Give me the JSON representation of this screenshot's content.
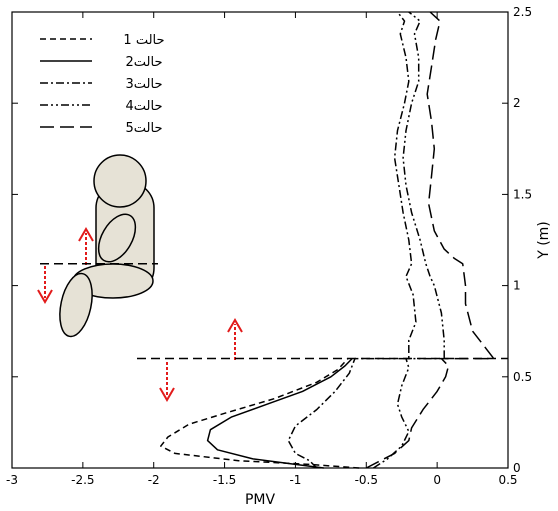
{
  "chart_data": {
    "type": "line",
    "xlabel": "PMV",
    "ylabel": "Y (m)",
    "xlim": [
      -3,
      0.5
    ],
    "ylim": [
      0,
      2.5
    ],
    "xticks": [
      "-3",
      "-2.5",
      "-2",
      "-1.5",
      "-1",
      "-0.5",
      "0",
      "0.5"
    ],
    "yticks": [
      "0",
      "0.5",
      "1",
      "1.5",
      "2",
      "2.5"
    ],
    "legend_position": "top-left",
    "grid": false,
    "reference_lines": [
      0.6,
      1.12
    ],
    "series": [
      {
        "name": "حالت 1",
        "dash": "6,4",
        "points": [
          [
            -0.55,
            0.0
          ],
          [
            -0.9,
            0.02
          ],
          [
            -1.4,
            0.04
          ],
          [
            -1.85,
            0.08
          ],
          [
            -1.95,
            0.12
          ],
          [
            -1.9,
            0.17
          ],
          [
            -1.75,
            0.24
          ],
          [
            -1.5,
            0.3
          ],
          [
            -1.15,
            0.38
          ],
          [
            -0.85,
            0.47
          ],
          [
            -0.7,
            0.54
          ],
          [
            -0.63,
            0.6
          ]
        ]
      },
      {
        "name": "حالت2",
        "dash": "",
        "points": [
          [
            -0.8,
            0.0
          ],
          [
            -1.0,
            0.02
          ],
          [
            -1.3,
            0.05
          ],
          [
            -1.55,
            0.1
          ],
          [
            -1.62,
            0.15
          ],
          [
            -1.6,
            0.21
          ],
          [
            -1.45,
            0.28
          ],
          [
            -1.2,
            0.35
          ],
          [
            -0.95,
            0.42
          ],
          [
            -0.75,
            0.5
          ],
          [
            -0.65,
            0.56
          ],
          [
            -0.6,
            0.6
          ]
        ]
      },
      {
        "name": "حالت3",
        "dash": "8,3,2,3",
        "points": [
          [
            -0.85,
            0.0
          ],
          [
            -0.9,
            0.04
          ],
          [
            -1.0,
            0.08
          ],
          [
            -1.05,
            0.15
          ],
          [
            -1.0,
            0.23
          ],
          [
            -0.85,
            0.32
          ],
          [
            -0.72,
            0.42
          ],
          [
            -0.62,
            0.52
          ],
          [
            -0.58,
            0.6
          ],
          [
            -0.2,
            0.6
          ],
          [
            -0.2,
            0.7
          ],
          [
            -0.15,
            0.8
          ],
          [
            -0.17,
            0.95
          ],
          [
            -0.22,
            1.05
          ],
          [
            -0.18,
            1.12
          ],
          [
            -0.2,
            1.25
          ],
          [
            -0.24,
            1.4
          ],
          [
            -0.27,
            1.55
          ],
          [
            -0.3,
            1.7
          ],
          [
            -0.28,
            1.85
          ],
          [
            -0.23,
            2.0
          ],
          [
            -0.2,
            2.12
          ],
          [
            -0.22,
            2.25
          ],
          [
            -0.26,
            2.38
          ],
          [
            -0.23,
            2.45
          ],
          [
            -0.28,
            2.5
          ]
        ]
      },
      {
        "name": "حالت4",
        "dash": "8,3,2,3,2,3",
        "points": [
          [
            -0.45,
            0.0
          ],
          [
            -0.35,
            0.05
          ],
          [
            -0.25,
            0.12
          ],
          [
            -0.2,
            0.2
          ],
          [
            -0.25,
            0.28
          ],
          [
            -0.28,
            0.35
          ],
          [
            -0.25,
            0.45
          ],
          [
            -0.2,
            0.55
          ],
          [
            -0.22,
            0.6
          ],
          [
            0.05,
            0.6
          ],
          [
            0.05,
            0.7
          ],
          [
            0.03,
            0.85
          ],
          [
            -0.02,
            1.0
          ],
          [
            -0.05,
            1.05
          ],
          [
            -0.08,
            1.12
          ],
          [
            -0.12,
            1.25
          ],
          [
            -0.18,
            1.4
          ],
          [
            -0.22,
            1.55
          ],
          [
            -0.24,
            1.7
          ],
          [
            -0.22,
            1.85
          ],
          [
            -0.18,
            2.0
          ],
          [
            -0.13,
            2.12
          ],
          [
            -0.13,
            2.25
          ],
          [
            -0.16,
            2.38
          ],
          [
            -0.12,
            2.45
          ],
          [
            -0.2,
            2.5
          ]
        ]
      },
      {
        "name": "حالت5",
        "dash": "14,6",
        "points": [
          [
            -0.5,
            0.0
          ],
          [
            -0.3,
            0.08
          ],
          [
            -0.2,
            0.15
          ],
          [
            -0.18,
            0.22
          ],
          [
            -0.1,
            0.32
          ],
          [
            0.0,
            0.42
          ],
          [
            0.06,
            0.5
          ],
          [
            0.08,
            0.56
          ],
          [
            0.03,
            0.6
          ],
          [
            0.4,
            0.6
          ],
          [
            0.35,
            0.65
          ],
          [
            0.25,
            0.75
          ],
          [
            0.2,
            0.9
          ],
          [
            0.2,
            1.0
          ],
          [
            0.18,
            1.12
          ],
          [
            0.12,
            1.15
          ],
          [
            0.05,
            1.2
          ],
          [
            -0.02,
            1.3
          ],
          [
            -0.06,
            1.45
          ],
          [
            -0.04,
            1.6
          ],
          [
            -0.02,
            1.75
          ],
          [
            -0.04,
            1.9
          ],
          [
            -0.07,
            2.05
          ],
          [
            -0.04,
            2.2
          ],
          [
            -0.01,
            2.35
          ],
          [
            0.02,
            2.45
          ],
          [
            -0.05,
            2.5
          ]
        ]
      }
    ]
  }
}
